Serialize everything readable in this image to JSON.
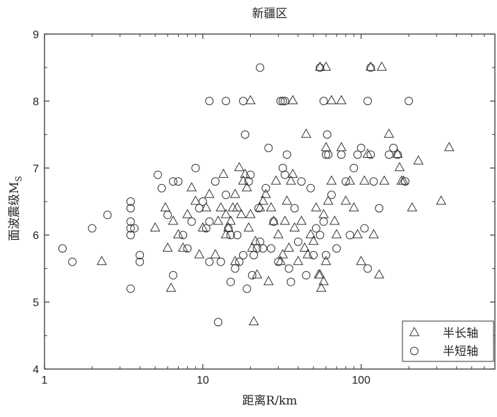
{
  "chart_data": {
    "type": "scatter",
    "title": "新疆区",
    "xlabel": "距离R/km",
    "ylabel": "面波震级M_S",
    "x_scale": "log",
    "xlim": [
      1,
      700
    ],
    "ylim": [
      4,
      9
    ],
    "x_ticks": [
      1,
      10,
      100
    ],
    "x_tick_labels": [
      "1",
      "10",
      "100"
    ],
    "y_ticks": [
      4,
      5,
      6,
      7,
      8,
      9
    ],
    "y_tick_labels": [
      "4",
      "5",
      "6",
      "7",
      "8",
      "9"
    ],
    "grid": false,
    "legend_position": "bottom-right",
    "series": [
      {
        "name": "半长轴",
        "marker": "triangle",
        "color": "#333333",
        "x": [
          2.3,
          5,
          5.8,
          6,
          6.3,
          6.5,
          7,
          7.5,
          8,
          8.5,
          9,
          9.5,
          10,
          10.5,
          11,
          12,
          12.5,
          13,
          13.5,
          14,
          14,
          14.5,
          15,
          15.5,
          16,
          16,
          16.5,
          17,
          17.5,
          18,
          18.5,
          19,
          19.5,
          20,
          20.5,
          21,
          21.5,
          22,
          23,
          24,
          25,
          26,
          27,
          28,
          29,
          30,
          31,
          32,
          33,
          34,
          35,
          36,
          37,
          38,
          40,
          42,
          44,
          46,
          48,
          50,
          52,
          54,
          56,
          58,
          60,
          62,
          65,
          68,
          70,
          75,
          80,
          85,
          90,
          95,
          100,
          105,
          110,
          120,
          130,
          140,
          150,
          170,
          175,
          180,
          185,
          210,
          230,
          320,
          360,
          20,
          37,
          55,
          60,
          75,
          115,
          135,
          60,
          65,
          45,
          55,
          58
        ],
        "y": [
          5.6,
          6.1,
          6.4,
          5.8,
          5.2,
          6.2,
          6.0,
          5.8,
          6.3,
          6.7,
          6.5,
          5.7,
          6.1,
          6.4,
          6.6,
          5.7,
          6.2,
          6.4,
          6.9,
          6.3,
          6.0,
          6.1,
          6.2,
          6.4,
          6.6,
          5.6,
          6.4,
          7.0,
          6.3,
          6.8,
          6.9,
          6.7,
          6.1,
          6.3,
          5.8,
          4.7,
          5.9,
          5.4,
          6.4,
          6.5,
          6.6,
          5.3,
          6.4,
          6.2,
          6.8,
          6.0,
          5.6,
          5.7,
          6.2,
          6.5,
          5.8,
          6.8,
          6.9,
          6.1,
          5.6,
          6.2,
          5.8,
          5.7,
          6.0,
          5.9,
          6.4,
          5.4,
          5.2,
          6.3,
          5.6,
          6.5,
          6.8,
          6.2,
          6.0,
          7.3,
          6.5,
          6.8,
          6.4,
          6.0,
          5.6,
          6.8,
          7.2,
          6.0,
          5.4,
          6.8,
          7.5,
          7.2,
          7.0,
          6.8,
          6.8,
          6.4,
          7.1,
          6.5,
          7.3,
          8.0,
          8.0,
          8.5,
          8.5,
          8.0,
          8.5,
          8.5,
          7.3,
          8.0,
          7.5,
          5.4,
          5.3
        ]
      },
      {
        "name": "半短轴",
        "marker": "circle",
        "color": "#333333",
        "x": [
          1.3,
          1.5,
          2,
          2.5,
          3.5,
          3.5,
          3.5,
          3.5,
          3.5,
          3.7,
          4,
          4,
          5.2,
          5.5,
          6,
          6.5,
          7,
          7.5,
          8,
          8.5,
          9,
          9.5,
          10,
          10.5,
          11,
          11,
          12,
          12.5,
          13,
          14,
          14.5,
          15,
          16,
          16.5,
          17,
          18,
          18.5,
          19,
          19.5,
          20,
          20.5,
          21,
          22,
          22.5,
          23,
          24,
          25,
          26,
          27,
          28,
          30,
          32,
          33,
          34,
          35,
          36,
          38,
          40,
          42,
          45,
          48,
          50,
          52,
          55,
          58,
          60,
          62,
          65,
          70,
          75,
          80,
          85,
          90,
          95,
          100,
          105,
          110,
          115,
          120,
          130,
          150,
          160,
          170,
          190,
          11,
          14,
          18,
          23,
          31,
          32,
          33,
          55,
          58,
          61,
          110,
          115,
          200,
          60,
          15,
          3.5,
          6.5
        ],
        "y": [
          5.8,
          5.6,
          6.1,
          6.3,
          6.5,
          6.4,
          6.2,
          6.0,
          5.2,
          6.1,
          5.7,
          5.6,
          6.9,
          6.7,
          6.3,
          5.4,
          6.8,
          6.0,
          5.8,
          6.2,
          7.0,
          6.4,
          6.5,
          6.1,
          6.2,
          5.6,
          6.8,
          4.7,
          5.6,
          6.6,
          6.1,
          5.3,
          5.5,
          6.0,
          5.6,
          5.7,
          7.5,
          5.2,
          6.8,
          6.9,
          5.4,
          5.7,
          5.8,
          6.4,
          5.9,
          5.8,
          6.7,
          7.3,
          5.8,
          6.2,
          5.6,
          7.0,
          6.9,
          7.2,
          5.5,
          5.3,
          6.4,
          5.9,
          6.8,
          5.4,
          6.7,
          5.7,
          6.1,
          6.0,
          6.2,
          5.7,
          7.2,
          6.6,
          5.8,
          7.2,
          6.8,
          6.0,
          7.0,
          7.2,
          7.3,
          6.1,
          5.5,
          7.2,
          6.8,
          6.4,
          7.2,
          7.3,
          7.2,
          6.8,
          8.0,
          8.0,
          8.0,
          8.5,
          8.0,
          8.0,
          8.0,
          8.5,
          8.0,
          7.5,
          8.0,
          8.5,
          8.0,
          7.2,
          6.0,
          6.1,
          6.8
        ]
      }
    ]
  }
}
